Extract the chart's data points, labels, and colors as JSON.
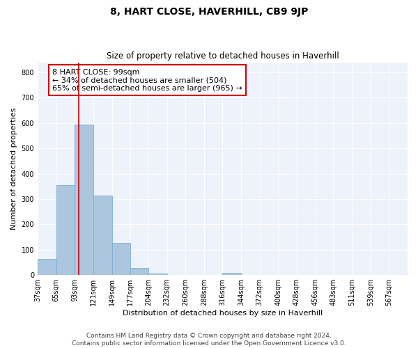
{
  "title": "8, HART CLOSE, HAVERHILL, CB9 9JP",
  "subtitle": "Size of property relative to detached houses in Haverhill",
  "xlabel": "Distribution of detached houses by size in Haverhill",
  "ylabel": "Number of detached properties",
  "bin_edges": [
    37,
    65,
    93,
    121,
    149,
    177,
    204,
    232,
    260,
    288,
    316,
    344,
    372,
    400,
    428,
    456,
    483,
    511,
    539,
    567,
    595
  ],
  "bar_heights": [
    65,
    355,
    595,
    315,
    128,
    28,
    7,
    0,
    0,
    0,
    8,
    0,
    0,
    0,
    0,
    0,
    0,
    0,
    0,
    0
  ],
  "bar_color": "#adc6e0",
  "bar_edgecolor": "#7aafd4",
  "bar_linewidth": 0.6,
  "vline_x": 99,
  "vline_color": "#cc0000",
  "vline_linewidth": 1.2,
  "annotation_text": "8 HART CLOSE: 99sqm\n← 34% of detached houses are smaller (504)\n65% of semi-detached houses are larger (965) →",
  "annotation_box_color": "#ffffff",
  "annotation_box_edgecolor": "#cc0000",
  "ylim": [
    0,
    840
  ],
  "yticks": [
    0,
    100,
    200,
    300,
    400,
    500,
    600,
    700,
    800
  ],
  "background_color": "#eef2fa",
  "grid_color": "#ffffff",
  "fig_background": "#ffffff",
  "footer_text": "Contains HM Land Registry data © Crown copyright and database right 2024.\nContains public sector information licensed under the Open Government Licence v3.0.",
  "tick_label_fontsize": 7,
  "title_fontsize": 10,
  "subtitle_fontsize": 8.5,
  "xlabel_fontsize": 8,
  "ylabel_fontsize": 8,
  "annotation_fontsize": 8,
  "footer_fontsize": 6.5
}
